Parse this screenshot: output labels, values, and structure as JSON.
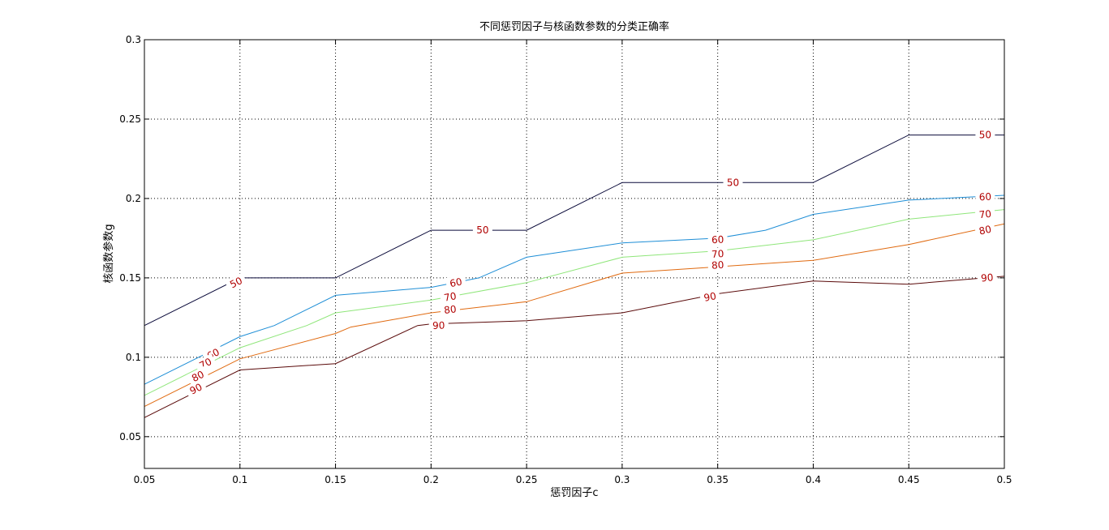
{
  "chart_data": {
    "type": "line",
    "title": "不同惩罚因子与核函数参数的分类正确率",
    "xlabel": "惩罚因子c",
    "ylabel": "核函数参数g",
    "xlim": [
      0.05,
      0.5
    ],
    "ylim": [
      0.03,
      0.3
    ],
    "xticks": [
      0.05,
      0.1,
      0.15,
      0.2,
      0.25,
      0.3,
      0.35,
      0.4,
      0.45,
      0.5
    ],
    "xtick_labels": [
      "0.05",
      "0.1",
      "0.15",
      "0.2",
      "0.25",
      "0.3",
      "0.35",
      "0.4",
      "0.45",
      "0.5"
    ],
    "yticks": [
      0.05,
      0.1,
      0.15,
      0.2,
      0.25,
      0.3
    ],
    "ytick_labels": [
      "0.05",
      "0.1",
      "0.15",
      "0.2",
      "0.25",
      "0.3"
    ],
    "grid": true,
    "series": [
      {
        "name": "50",
        "color": "#0a0a3a",
        "x": [
          0.05,
          0.1,
          0.15,
          0.2,
          0.25,
          0.3,
          0.35,
          0.4,
          0.45,
          0.5
        ],
        "y": [
          0.12,
          0.15,
          0.15,
          0.18,
          0.18,
          0.21,
          0.21,
          0.21,
          0.24,
          0.24
        ],
        "labels": [
          [
            0.098,
            0.147
          ],
          [
            0.227,
            0.18
          ],
          [
            0.358,
            0.21
          ],
          [
            0.49,
            0.24
          ]
        ]
      },
      {
        "name": "60",
        "color": "#1e8ed6",
        "x": [
          0.05,
          0.1,
          0.118,
          0.15,
          0.2,
          0.225,
          0.25,
          0.3,
          0.35,
          0.375,
          0.4,
          0.45,
          0.5
        ],
        "y": [
          0.083,
          0.113,
          0.12,
          0.139,
          0.144,
          0.15,
          0.163,
          0.172,
          0.175,
          0.18,
          0.19,
          0.199,
          0.202
        ],
        "labels": [
          [
            0.086,
            0.102
          ],
          [
            0.213,
            0.147
          ],
          [
            0.35,
            0.174
          ],
          [
            0.49,
            0.201
          ]
        ]
      },
      {
        "name": "70",
        "color": "#8fe67a",
        "x": [
          0.05,
          0.1,
          0.135,
          0.15,
          0.2,
          0.25,
          0.3,
          0.35,
          0.4,
          0.45,
          0.5
        ],
        "y": [
          0.076,
          0.106,
          0.12,
          0.128,
          0.136,
          0.147,
          0.163,
          0.167,
          0.174,
          0.187,
          0.193
        ],
        "labels": [
          [
            0.082,
            0.096
          ],
          [
            0.21,
            0.138
          ],
          [
            0.35,
            0.165
          ],
          [
            0.49,
            0.19
          ]
        ]
      },
      {
        "name": "80",
        "color": "#e06a10",
        "x": [
          0.05,
          0.1,
          0.15,
          0.158,
          0.2,
          0.25,
          0.3,
          0.35,
          0.4,
          0.45,
          0.5
        ],
        "y": [
          0.069,
          0.099,
          0.115,
          0.119,
          0.128,
          0.135,
          0.153,
          0.157,
          0.161,
          0.171,
          0.184
        ],
        "labels": [
          [
            0.078,
            0.088
          ],
          [
            0.21,
            0.13
          ],
          [
            0.35,
            0.158
          ],
          [
            0.49,
            0.18
          ]
        ]
      },
      {
        "name": "90",
        "color": "#5a0a0a",
        "x": [
          0.05,
          0.1,
          0.15,
          0.193,
          0.2,
          0.25,
          0.3,
          0.35,
          0.4,
          0.45,
          0.5
        ],
        "y": [
          0.062,
          0.092,
          0.096,
          0.12,
          0.121,
          0.123,
          0.128,
          0.14,
          0.148,
          0.146,
          0.151
        ],
        "labels": [
          [
            0.077,
            0.08
          ],
          [
            0.204,
            0.12
          ],
          [
            0.346,
            0.138
          ],
          [
            0.491,
            0.15
          ]
        ]
      }
    ]
  }
}
